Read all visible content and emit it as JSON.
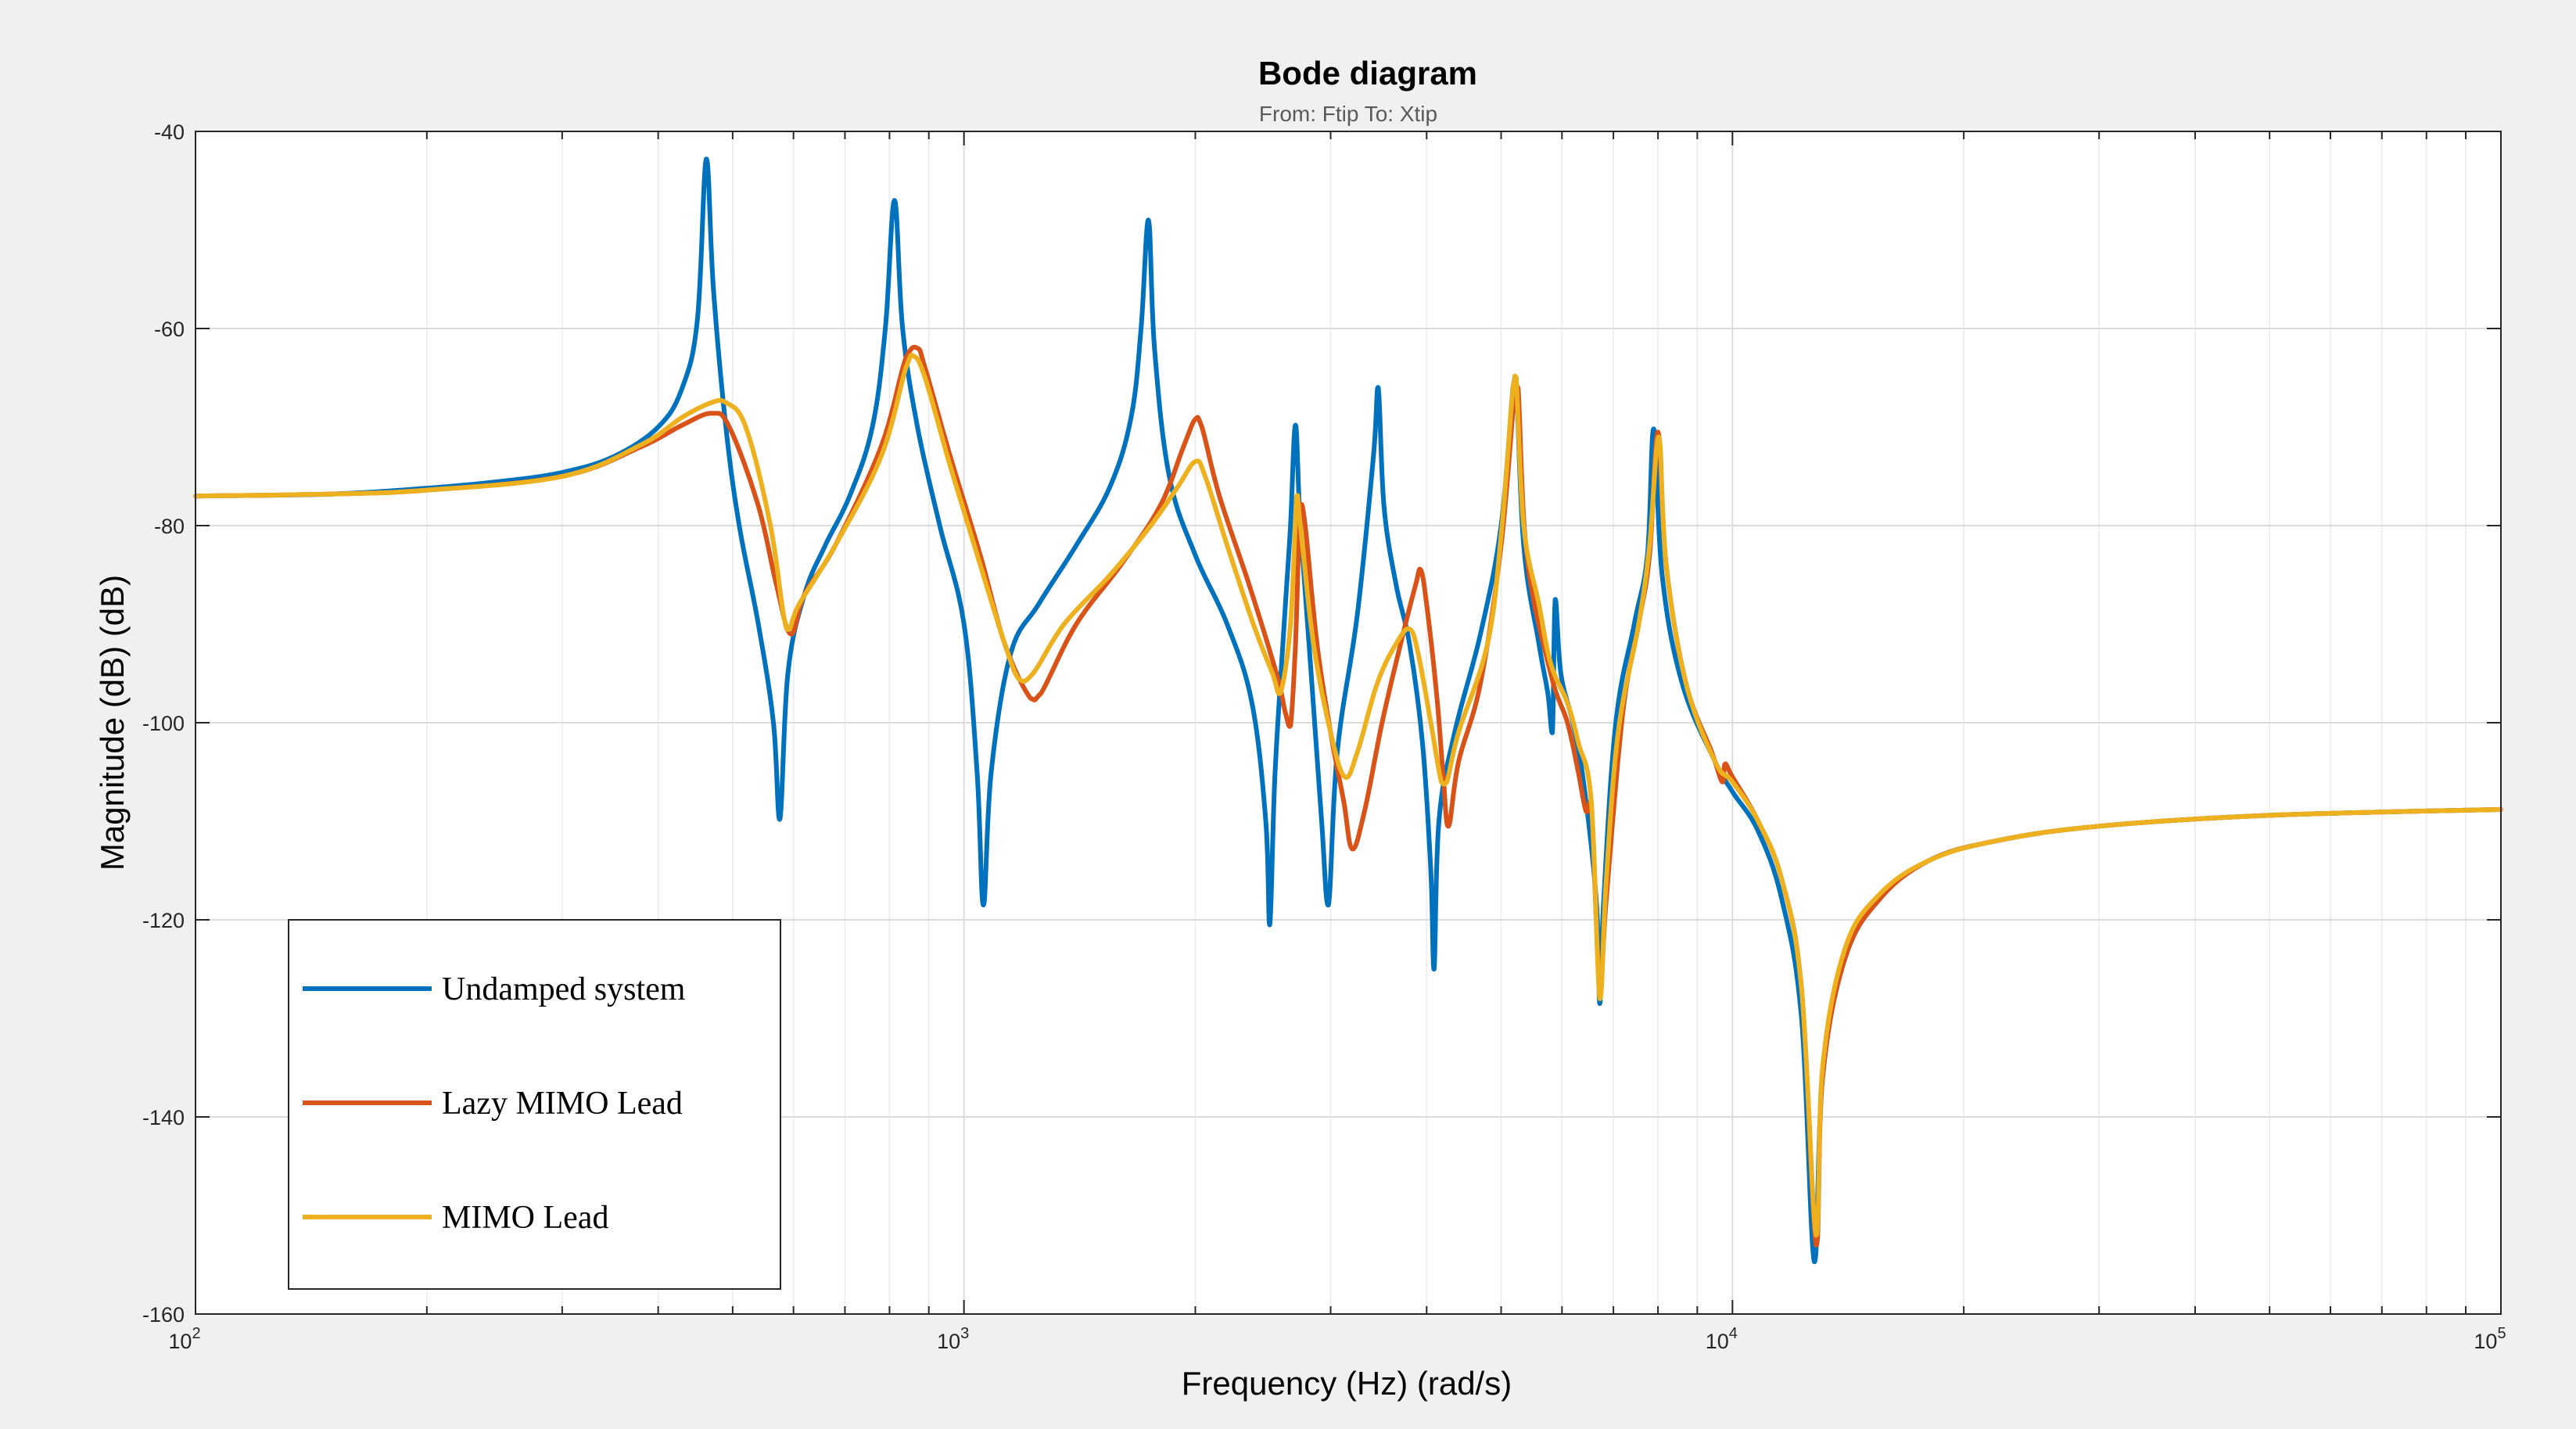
{
  "chart_data": {
    "type": "line",
    "title": "Bode diagram",
    "subtitle": "From: Ftip  To: Xtip",
    "xlabel": "Frequency (Hz)  (rad/s)",
    "ylabel": "Magnitude (dB) (dB)",
    "xscale": "log",
    "xlim": [
      100,
      100000
    ],
    "ylim": [
      -160,
      -40
    ],
    "grid": true,
    "legend_position": "bottom-left",
    "y_ticks": [
      {
        "value": -40,
        "label": "-40"
      },
      {
        "value": -60,
        "label": "-60"
      },
      {
        "value": -80,
        "label": "-80"
      },
      {
        "value": -100,
        "label": "-100"
      },
      {
        "value": -120,
        "label": "-120"
      },
      {
        "value": -140,
        "label": "-140"
      },
      {
        "value": -160,
        "label": "-160"
      }
    ],
    "x_ticks": [
      {
        "value": 100,
        "base": "10",
        "exp": "2"
      },
      {
        "value": 1000,
        "base": "10",
        "exp": "3"
      },
      {
        "value": 10000,
        "base": "10",
        "exp": "4"
      },
      {
        "value": 100000,
        "base": "10",
        "exp": "5"
      }
    ],
    "series": [
      {
        "name": "Undamped system",
        "color": "#0072BD",
        "points": [
          [
            100,
            -77
          ],
          [
            150,
            -76.8
          ],
          [
            200,
            -76.2
          ],
          [
            250,
            -75.5
          ],
          [
            300,
            -74.6
          ],
          [
            350,
            -73
          ],
          [
            400,
            -70
          ],
          [
            430,
            -66
          ],
          [
            450,
            -59
          ],
          [
            462,
            -42.8
          ],
          [
            472,
            -56
          ],
          [
            490,
            -70
          ],
          [
            510,
            -80
          ],
          [
            540,
            -90
          ],
          [
            565,
            -100
          ],
          [
            576,
            -109.8
          ],
          [
            590,
            -95
          ],
          [
            620,
            -87
          ],
          [
            660,
            -82
          ],
          [
            710,
            -77
          ],
          [
            760,
            -70
          ],
          [
            790,
            -60
          ],
          [
            812,
            -47
          ],
          [
            832,
            -60
          ],
          [
            870,
            -70
          ],
          [
            930,
            -80
          ],
          [
            1000,
            -90
          ],
          [
            1040,
            -105
          ],
          [
            1060,
            -118.5
          ],
          [
            1085,
            -105
          ],
          [
            1150,
            -93
          ],
          [
            1250,
            -88
          ],
          [
            1400,
            -82
          ],
          [
            1550,
            -76
          ],
          [
            1650,
            -69
          ],
          [
            1700,
            -60
          ],
          [
            1738,
            -49
          ],
          [
            1770,
            -62
          ],
          [
            1850,
            -75
          ],
          [
            2000,
            -83
          ],
          [
            2200,
            -90
          ],
          [
            2370,
            -98
          ],
          [
            2470,
            -110
          ],
          [
            2500,
            -120.5
          ],
          [
            2540,
            -105
          ],
          [
            2620,
            -88
          ],
          [
            2660,
            -80
          ],
          [
            2700,
            -69.8
          ],
          [
            2740,
            -80
          ],
          [
            2830,
            -95
          ],
          [
            2920,
            -110
          ],
          [
            2980,
            -118.5
          ],
          [
            3060,
            -103
          ],
          [
            3250,
            -89
          ],
          [
            3410,
            -73
          ],
          [
            3460,
            -66
          ],
          [
            3520,
            -78
          ],
          [
            3650,
            -86
          ],
          [
            3800,
            -92
          ],
          [
            3950,
            -102
          ],
          [
            4050,
            -115
          ],
          [
            4090,
            -125
          ],
          [
            4150,
            -110
          ],
          [
            4350,
            -101
          ],
          [
            4700,
            -91
          ],
          [
            5000,
            -80
          ],
          [
            5180,
            -66
          ],
          [
            5230,
            -65
          ],
          [
            5350,
            -82
          ],
          [
            5600,
            -92
          ],
          [
            5750,
            -97
          ],
          [
            5830,
            -101
          ],
          [
            5880,
            -87.5
          ],
          [
            5980,
            -95
          ],
          [
            6200,
            -100
          ],
          [
            6400,
            -106
          ],
          [
            6650,
            -118
          ],
          [
            6720,
            -128.5
          ],
          [
            6800,
            -118
          ],
          [
            7050,
            -100
          ],
          [
            7450,
            -90
          ],
          [
            7750,
            -83
          ],
          [
            7900,
            -70.2
          ],
          [
            8100,
            -85
          ],
          [
            8600,
            -96
          ],
          [
            9500,
            -104
          ],
          [
            10000,
            -107
          ],
          [
            10800,
            -111
          ],
          [
            11600,
            -118
          ],
          [
            12300,
            -130
          ],
          [
            12780,
            -154.7
          ],
          [
            13100,
            -136
          ],
          [
            14000,
            -124
          ],
          [
            15500,
            -118
          ],
          [
            18000,
            -114
          ],
          [
            22000,
            -112
          ],
          [
            30000,
            -110.5
          ],
          [
            50000,
            -109.4
          ],
          [
            100000,
            -108.8
          ]
        ]
      },
      {
        "name": "Lazy MIMO Lead",
        "color": "#D95319",
        "points": [
          [
            100,
            -77
          ],
          [
            150,
            -76.8
          ],
          [
            200,
            -76.4
          ],
          [
            300,
            -75
          ],
          [
            380,
            -72
          ],
          [
            430,
            -69.8
          ],
          [
            470,
            -68.6
          ],
          [
            495,
            -70
          ],
          [
            540,
            -78
          ],
          [
            570,
            -86
          ],
          [
            595,
            -91
          ],
          [
            620,
            -87
          ],
          [
            680,
            -82
          ],
          [
            780,
            -72
          ],
          [
            840,
            -63
          ],
          [
            870,
            -62
          ],
          [
            890,
            -64
          ],
          [
            960,
            -73
          ],
          [
            1050,
            -83
          ],
          [
            1130,
            -92
          ],
          [
            1220,
            -97.5
          ],
          [
            1260,
            -97
          ],
          [
            1400,
            -90
          ],
          [
            1600,
            -84
          ],
          [
            1800,
            -78
          ],
          [
            1930,
            -72
          ],
          [
            2000,
            -69.2
          ],
          [
            2040,
            -70
          ],
          [
            2150,
            -77
          ],
          [
            2350,
            -86
          ],
          [
            2550,
            -95
          ],
          [
            2620,
            -99
          ],
          [
            2660,
            -100.3
          ],
          [
            2700,
            -92
          ],
          [
            2740,
            -78
          ],
          [
            2780,
            -80
          ],
          [
            2880,
            -92
          ],
          [
            3000,
            -101
          ],
          [
            3120,
            -108
          ],
          [
            3200,
            -112.8
          ],
          [
            3320,
            -109
          ],
          [
            3500,
            -100
          ],
          [
            3700,
            -92
          ],
          [
            3870,
            -86
          ],
          [
            3930,
            -84.5
          ],
          [
            4000,
            -88
          ],
          [
            4120,
            -97
          ],
          [
            4200,
            -105
          ],
          [
            4270,
            -110.5
          ],
          [
            4400,
            -104
          ],
          [
            4700,
            -96
          ],
          [
            5000,
            -82
          ],
          [
            5200,
            -67
          ],
          [
            5260,
            -66
          ],
          [
            5400,
            -83
          ],
          [
            5800,
            -95
          ],
          [
            6100,
            -100
          ],
          [
            6300,
            -105
          ],
          [
            6450,
            -109
          ],
          [
            6550,
            -108
          ],
          [
            6720,
            -127
          ],
          [
            6850,
            -118
          ],
          [
            7200,
            -99
          ],
          [
            7550,
            -90
          ],
          [
            7800,
            -83
          ],
          [
            8000,
            -70.5
          ],
          [
            8200,
            -84
          ],
          [
            8700,
            -96
          ],
          [
            9400,
            -103
          ],
          [
            9700,
            -106
          ],
          [
            9780,
            -104.2
          ],
          [
            10000,
            -105.5
          ],
          [
            10800,
            -110
          ],
          [
            11600,
            -116
          ],
          [
            12300,
            -127
          ],
          [
            12850,
            -153
          ],
          [
            13100,
            -136
          ],
          [
            14000,
            -124
          ],
          [
            15500,
            -118
          ],
          [
            18000,
            -114
          ],
          [
            22000,
            -112
          ],
          [
            30000,
            -110.5
          ],
          [
            50000,
            -109.4
          ],
          [
            100000,
            -108.8
          ]
        ]
      },
      {
        "name": "MIMO Lead",
        "color": "#EDB120",
        "points": [
          [
            100,
            -77
          ],
          [
            150,
            -76.8
          ],
          [
            200,
            -76.4
          ],
          [
            300,
            -75
          ],
          [
            380,
            -71.8
          ],
          [
            430,
            -69
          ],
          [
            470,
            -67.5
          ],
          [
            490,
            -67.5
          ],
          [
            520,
            -70
          ],
          [
            560,
            -80
          ],
          [
            588,
            -90.5
          ],
          [
            610,
            -88
          ],
          [
            680,
            -82
          ],
          [
            780,
            -73
          ],
          [
            840,
            -64
          ],
          [
            860,
            -62.8
          ],
          [
            890,
            -65
          ],
          [
            960,
            -74
          ],
          [
            1050,
            -84
          ],
          [
            1130,
            -92
          ],
          [
            1180,
            -95.6
          ],
          [
            1230,
            -95
          ],
          [
            1350,
            -90
          ],
          [
            1550,
            -85
          ],
          [
            1750,
            -80
          ],
          [
            1900,
            -76
          ],
          [
            2000,
            -73.5
          ],
          [
            2060,
            -75
          ],
          [
            2200,
            -82
          ],
          [
            2380,
            -90
          ],
          [
            2520,
            -95
          ],
          [
            2580,
            -97
          ],
          [
            2660,
            -90
          ],
          [
            2710,
            -77
          ],
          [
            2740,
            -80
          ],
          [
            2850,
            -92
          ],
          [
            3000,
            -101
          ],
          [
            3130,
            -105.5
          ],
          [
            3250,
            -103
          ],
          [
            3450,
            -96
          ],
          [
            3650,
            -92
          ],
          [
            3800,
            -90.5
          ],
          [
            3900,
            -93
          ],
          [
            4050,
            -100
          ],
          [
            4180,
            -106
          ],
          [
            4250,
            -106
          ],
          [
            4400,
            -101
          ],
          [
            4800,
            -92
          ],
          [
            5000,
            -81
          ],
          [
            5180,
            -66
          ],
          [
            5230,
            -65
          ],
          [
            5350,
            -80
          ],
          [
            5600,
            -88
          ],
          [
            5800,
            -94
          ],
          [
            6100,
            -98
          ],
          [
            6300,
            -102
          ],
          [
            6550,
            -108
          ],
          [
            6720,
            -128
          ],
          [
            6850,
            -116
          ],
          [
            7100,
            -101
          ],
          [
            7550,
            -90
          ],
          [
            7800,
            -82
          ],
          [
            8020,
            -71
          ],
          [
            8200,
            -84
          ],
          [
            8700,
            -96
          ],
          [
            9500,
            -104
          ],
          [
            10000,
            -106
          ],
          [
            10800,
            -110
          ],
          [
            11600,
            -116
          ],
          [
            12300,
            -127
          ],
          [
            12850,
            -152
          ],
          [
            13100,
            -135
          ],
          [
            14000,
            -123
          ],
          [
            15500,
            -117.5
          ],
          [
            18000,
            -114
          ],
          [
            22000,
            -112
          ],
          [
            30000,
            -110.5
          ],
          [
            50000,
            -109.4
          ],
          [
            100000,
            -108.8
          ]
        ]
      }
    ]
  }
}
